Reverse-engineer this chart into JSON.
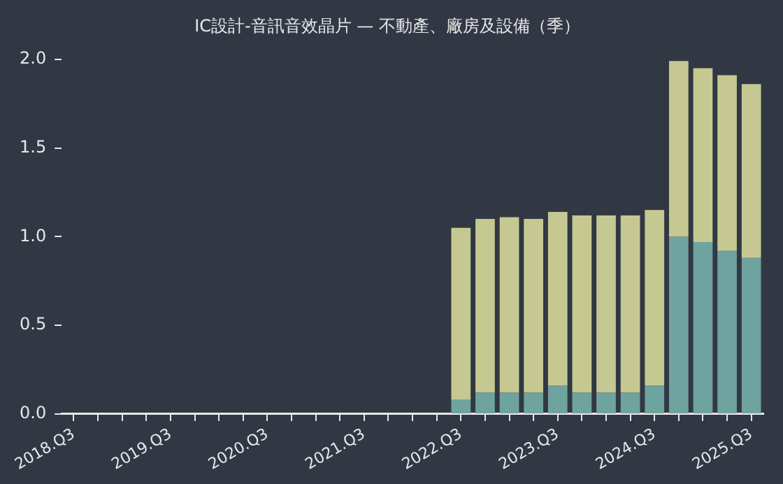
{
  "chart_data": {
    "type": "bar",
    "title": "IC設計-音訊音效晶片 — 不動產、廠房及設備（季）",
    "categories": [
      "2018.Q3",
      null,
      null,
      null,
      "2019.Q3",
      null,
      null,
      null,
      "2020.Q3",
      null,
      null,
      null,
      "2021.Q3",
      null,
      null,
      null,
      "2022.Q3",
      null,
      null,
      null,
      "2023.Q3",
      null,
      null,
      null,
      "2024.Q3",
      null,
      null,
      null,
      "2025.Q3"
    ],
    "stacked": true,
    "series": [
      {
        "color": "#6fa3a0",
        "values": [
          null,
          null,
          null,
          null,
          null,
          null,
          null,
          null,
          null,
          null,
          null,
          null,
          null,
          null,
          null,
          null,
          0.08,
          0.12,
          0.12,
          0.12,
          0.16,
          0.12,
          0.12,
          0.12,
          0.16,
          1.0,
          0.97,
          0.92,
          0.88
        ]
      },
      {
        "color": "#c5c991",
        "values": [
          null,
          null,
          null,
          null,
          null,
          null,
          null,
          null,
          null,
          null,
          null,
          null,
          null,
          null,
          null,
          null,
          0.97,
          0.98,
          0.99,
          0.98,
          0.98,
          1.0,
          1.0,
          1.0,
          0.99,
          0.99,
          0.98,
          0.99,
          0.98
        ]
      }
    ],
    "ylim": [
      0,
      2
    ],
    "yticks": [
      {
        "value": 0,
        "label": "0.0"
      },
      {
        "value": 0.5,
        "label": "0.5"
      },
      {
        "value": 1,
        "label": "1.0"
      },
      {
        "value": 1.5,
        "label": "1.5"
      },
      {
        "value": 2,
        "label": "2.0"
      }
    ],
    "grid": false,
    "legend": false
  }
}
